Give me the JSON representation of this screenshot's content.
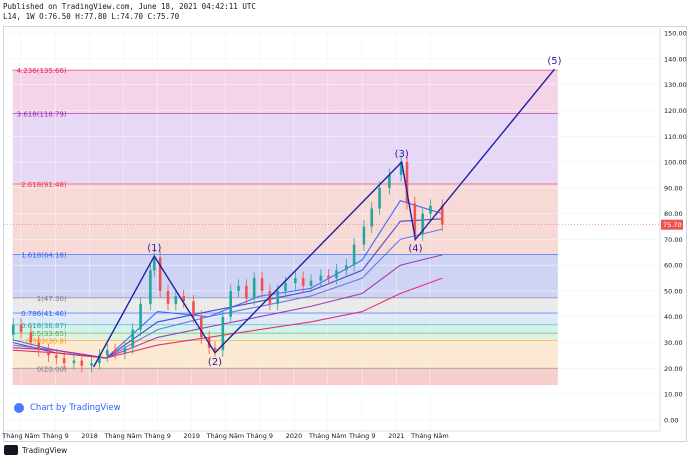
{
  "header": {
    "published": "Published on TradingView.com, June 18, 2021 04:42:11 UTC",
    "ohlc": "L14, 1W O:76.50 H:77.80 L:74.70 C:75.70"
  },
  "footer": {
    "brand": "TradingView"
  },
  "watermark": {
    "text": "Chart by TradingView"
  },
  "colors": {
    "wave": "#1f1fa8",
    "candle_up": "#26a69a",
    "candle_down": "#ef5350",
    "price_tag": "#ef5350"
  },
  "chart_data": {
    "type": "line",
    "title": "",
    "y_range": [
      -2,
      152
    ],
    "y_ticks": [
      0,
      10,
      20,
      30,
      40,
      50,
      60,
      70,
      80,
      90,
      100,
      110,
      120,
      130,
      140,
      150
    ],
    "y_tick_labels": [
      "0.00",
      "10.00",
      "20.00",
      "30.00",
      "40.00",
      "50.00",
      "60.00",
      "70.00",
      "80.00",
      "90.00",
      "100.00",
      "110.00",
      "120.00",
      "130.00",
      "140.00",
      "150.00"
    ],
    "x_range": [
      "2017-03-01",
      "2023-08-01"
    ],
    "x_ticks": [
      {
        "date": "2017-05-01",
        "label": "Tháng Năm"
      },
      {
        "date": "2017-09-01",
        "label": "Tháng 9"
      },
      {
        "date": "2018-01-01",
        "label": "2018"
      },
      {
        "date": "2018-05-01",
        "label": "Tháng Năm"
      },
      {
        "date": "2018-09-01",
        "label": "Tháng 9"
      },
      {
        "date": "2019-01-01",
        "label": "2019"
      },
      {
        "date": "2019-05-01",
        "label": "Tháng Năm"
      },
      {
        "date": "2019-09-01",
        "label": "Tháng 9"
      },
      {
        "date": "2020-01-01",
        "label": "2020"
      },
      {
        "date": "2020-05-01",
        "label": "Tháng Năm"
      },
      {
        "date": "2020-09-01",
        "label": "Tháng 9"
      },
      {
        "date": "2021-01-01",
        "label": "2021"
      },
      {
        "date": "2021-05-01",
        "label": "Tháng Năm"
      }
    ],
    "current_price": {
      "value": 75.7,
      "label": "75.70"
    },
    "fib_levels": [
      {
        "ratio": "0",
        "value": 20.0,
        "label": "0(20.00)",
        "color": "#787b86",
        "fill": "#f4c7c3"
      },
      {
        "ratio": "0.382",
        "value": 30.8,
        "label": "0.382(30.8)",
        "color": "#ff9800",
        "fill": "#fbe5c9"
      },
      {
        "ratio": "0.5",
        "value": 33.65,
        "label": "0.5(33.65)",
        "color": "#4caf50",
        "fill": "#d9f0d9"
      },
      {
        "ratio": "0.618",
        "value": 36.87,
        "label": "0.618(36.87)",
        "color": "#26a69a",
        "fill": "#cdeeea"
      },
      {
        "ratio": "0.786",
        "value": 41.46,
        "label": "0.786(41.46)",
        "color": "#2962ff",
        "fill": "#d7e4f7"
      },
      {
        "ratio": "1",
        "value": 47.3,
        "label": "1(47.30)",
        "color": "#787b86",
        "fill": "#e6e6e6"
      },
      {
        "ratio": "1.618",
        "value": 64.18,
        "label": "1.618(64.18)",
        "color": "#2962ff",
        "fill": "#c8ccf2"
      },
      {
        "ratio": "2.618",
        "value": 91.48,
        "label": "2.618(91.48)",
        "color": "#f23645",
        "fill": "#f6d2cf"
      },
      {
        "ratio": "3.618",
        "value": 118.79,
        "label": "3.618(118.79)",
        "color": "#9c27b0",
        "fill": "#e3d1f3"
      },
      {
        "ratio": "4.236",
        "value": 135.66,
        "label": "4.236(135.66)",
        "color": "#e91e63",
        "fill": "#f3cde3"
      }
    ],
    "waves": [
      {
        "label": "",
        "date": "2018-01-15",
        "value": 20.5
      },
      {
        "label": "(1)",
        "date": "2018-08-20",
        "value": 63.5
      },
      {
        "label": "(2)",
        "date": "2019-03-25",
        "value": 26.0
      },
      {
        "label": "(3)",
        "date": "2021-01-20",
        "value": 100.0
      },
      {
        "label": "(4)",
        "date": "2021-03-10",
        "value": 70.0
      },
      {
        "label": "(5)",
        "date": "2022-07-20",
        "value": 136.0
      }
    ],
    "price_series": [
      {
        "date": "2017-03-06",
        "value": 33
      },
      {
        "date": "2017-04-03",
        "value": 37
      },
      {
        "date": "2017-05-01",
        "value": 34
      },
      {
        "date": "2017-06-05",
        "value": 30
      },
      {
        "date": "2017-07-03",
        "value": 27
      },
      {
        "date": "2017-08-07",
        "value": 25
      },
      {
        "date": "2017-09-04",
        "value": 24
      },
      {
        "date": "2017-10-02",
        "value": 22
      },
      {
        "date": "2017-11-06",
        "value": 23
      },
      {
        "date": "2017-12-04",
        "value": 21
      },
      {
        "date": "2018-01-08",
        "value": 22
      },
      {
        "date": "2018-02-05",
        "value": 25
      },
      {
        "date": "2018-03-05",
        "value": 27
      },
      {
        "date": "2018-04-02",
        "value": 26
      },
      {
        "date": "2018-05-07",
        "value": 28
      },
      {
        "date": "2018-06-04",
        "value": 35
      },
      {
        "date": "2018-07-02",
        "value": 45
      },
      {
        "date": "2018-08-06",
        "value": 58
      },
      {
        "date": "2018-08-20",
        "value": 63
      },
      {
        "date": "2018-09-10",
        "value": 50
      },
      {
        "date": "2018-10-08",
        "value": 45
      },
      {
        "date": "2018-11-05",
        "value": 48
      },
      {
        "date": "2018-12-03",
        "value": 46
      },
      {
        "date": "2019-01-07",
        "value": 40
      },
      {
        "date": "2019-02-04",
        "value": 32
      },
      {
        "date": "2019-03-04",
        "value": 28
      },
      {
        "date": "2019-03-25",
        "value": 27
      },
      {
        "date": "2019-04-22",
        "value": 40
      },
      {
        "date": "2019-05-20",
        "value": 50
      },
      {
        "date": "2019-06-17",
        "value": 52
      },
      {
        "date": "2019-07-15",
        "value": 47
      },
      {
        "date": "2019-08-12",
        "value": 55
      },
      {
        "date": "2019-09-09",
        "value": 50
      },
      {
        "date": "2019-10-07",
        "value": 45
      },
      {
        "date": "2019-11-04",
        "value": 50
      },
      {
        "date": "2019-12-02",
        "value": 53
      },
      {
        "date": "2020-01-06",
        "value": 55
      },
      {
        "date": "2020-02-03",
        "value": 52
      },
      {
        "date": "2020-03-02",
        "value": 54
      },
      {
        "date": "2020-04-06",
        "value": 56
      },
      {
        "date": "2020-05-04",
        "value": 55
      },
      {
        "date": "2020-06-01",
        "value": 58
      },
      {
        "date": "2020-07-06",
        "value": 60
      },
      {
        "date": "2020-08-03",
        "value": 68
      },
      {
        "date": "2020-09-07",
        "value": 75
      },
      {
        "date": "2020-10-05",
        "value": 82
      },
      {
        "date": "2020-11-02",
        "value": 90
      },
      {
        "date": "2020-12-07",
        "value": 95
      },
      {
        "date": "2021-01-18",
        "value": 100
      },
      {
        "date": "2021-02-08",
        "value": 84
      },
      {
        "date": "2021-03-08",
        "value": 72
      },
      {
        "date": "2021-04-05",
        "value": 80
      },
      {
        "date": "2021-05-03",
        "value": 83
      },
      {
        "date": "2021-06-14",
        "value": 75.7
      }
    ],
    "moving_averages": [
      {
        "color": "#2962ff",
        "values": [
          [
            "2017-04-01",
            31
          ],
          [
            "2017-09-01",
            27
          ],
          [
            "2018-03-01",
            24
          ],
          [
            "2018-09-01",
            42
          ],
          [
            "2019-03-01",
            40
          ],
          [
            "2019-09-01",
            48
          ],
          [
            "2020-03-01",
            51
          ],
          [
            "2020-09-01",
            62
          ],
          [
            "2021-01-15",
            85
          ],
          [
            "2021-06-14",
            80
          ]
        ]
      },
      {
        "color": "#3a3ac4",
        "values": [
          [
            "2017-04-01",
            30
          ],
          [
            "2017-09-01",
            26
          ],
          [
            "2018-03-01",
            24
          ],
          [
            "2018-09-01",
            38
          ],
          [
            "2019-03-01",
            42
          ],
          [
            "2019-09-01",
            46
          ],
          [
            "2020-03-01",
            50
          ],
          [
            "2020-09-01",
            58
          ],
          [
            "2021-01-15",
            77
          ],
          [
            "2021-06-14",
            78
          ]
        ]
      },
      {
        "color": "#5d6ee8",
        "values": [
          [
            "2017-04-01",
            29
          ],
          [
            "2017-09-01",
            27
          ],
          [
            "2018-03-01",
            24
          ],
          [
            "2018-09-01",
            35
          ],
          [
            "2019-03-01",
            40
          ],
          [
            "2019-09-01",
            44
          ],
          [
            "2020-03-01",
            48
          ],
          [
            "2020-09-01",
            55
          ],
          [
            "2021-01-15",
            70
          ],
          [
            "2021-06-14",
            74
          ]
        ]
      },
      {
        "color": "#9c27b0",
        "values": [
          [
            "2017-04-01",
            28
          ],
          [
            "2017-09-01",
            27
          ],
          [
            "2018-03-01",
            24
          ],
          [
            "2018-09-01",
            32
          ],
          [
            "2019-03-01",
            36
          ],
          [
            "2019-09-01",
            40
          ],
          [
            "2020-03-01",
            44
          ],
          [
            "2020-09-01",
            49
          ],
          [
            "2021-01-15",
            60
          ],
          [
            "2021-06-14",
            64
          ]
        ]
      },
      {
        "color": "#e91e63",
        "values": [
          [
            "2017-04-01",
            27
          ],
          [
            "2017-09-01",
            26
          ],
          [
            "2018-03-01",
            24
          ],
          [
            "2018-09-01",
            29
          ],
          [
            "2019-03-01",
            32
          ],
          [
            "2019-09-01",
            35
          ],
          [
            "2020-03-01",
            38
          ],
          [
            "2020-09-01",
            42
          ],
          [
            "2021-01-15",
            49
          ],
          [
            "2021-06-14",
            55
          ]
        ]
      }
    ]
  }
}
